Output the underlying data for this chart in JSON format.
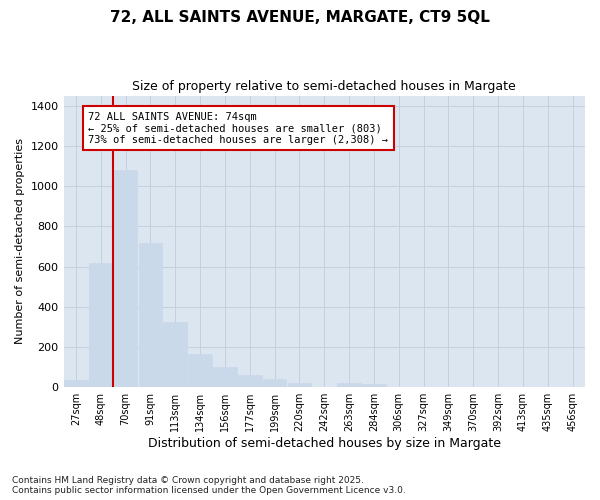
{
  "title": "72, ALL SAINTS AVENUE, MARGATE, CT9 5QL",
  "subtitle": "Size of property relative to semi-detached houses in Margate",
  "xlabel": "Distribution of semi-detached houses by size in Margate",
  "ylabel": "Number of semi-detached properties",
  "categories": [
    "27sqm",
    "48sqm",
    "70sqm",
    "91sqm",
    "113sqm",
    "134sqm",
    "156sqm",
    "177sqm",
    "199sqm",
    "220sqm",
    "242sqm",
    "263sqm",
    "284sqm",
    "306sqm",
    "327sqm",
    "349sqm",
    "370sqm",
    "392sqm",
    "413sqm",
    "435sqm",
    "456sqm"
  ],
  "values": [
    35,
    620,
    1080,
    715,
    325,
    165,
    100,
    60,
    40,
    20,
    0,
    20,
    15,
    0,
    0,
    0,
    0,
    0,
    0,
    0,
    0
  ],
  "bar_color": "#c9d9ea",
  "bar_edge_color": "#c9d9ea",
  "property_bin_index": 2,
  "property_label": "72 ALL SAINTS AVENUE: 74sqm",
  "annotation_line1": "← 25% of semi-detached houses are smaller (803)",
  "annotation_line2": "73% of semi-detached houses are larger (2,308) →",
  "vline_color": "#cc0000",
  "annotation_box_edge": "#cc0000",
  "ylim": [
    0,
    1450
  ],
  "yticks": [
    0,
    200,
    400,
    600,
    800,
    1000,
    1200,
    1400
  ],
  "grid_color": "#c5d0df",
  "background_color": "#dce6f0",
  "footer_line1": "Contains HM Land Registry data © Crown copyright and database right 2025.",
  "footer_line2": "Contains public sector information licensed under the Open Government Licence v3.0."
}
